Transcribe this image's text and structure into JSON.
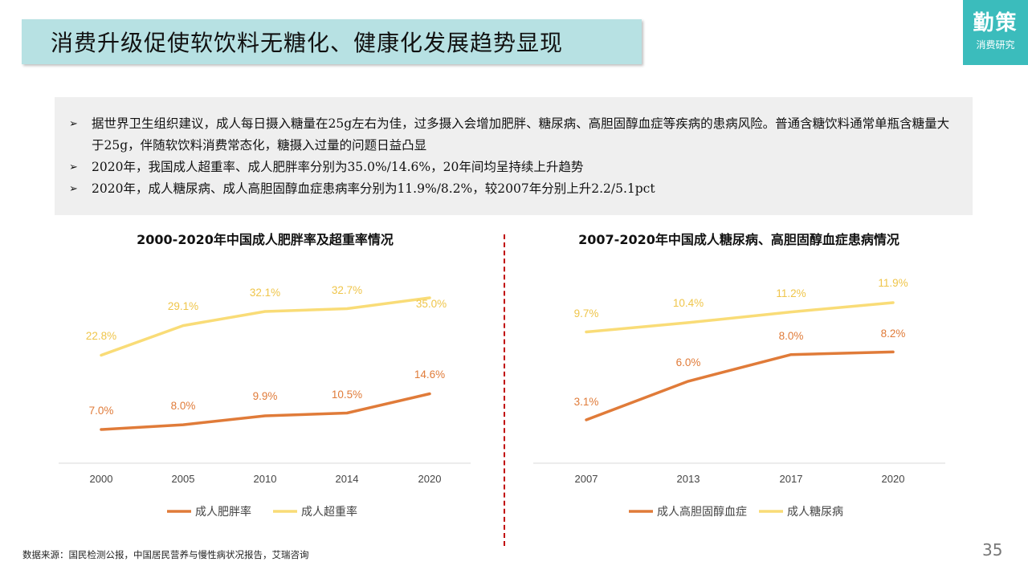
{
  "slide": {
    "title": "消费升级促使软饮料无糖化、健康化发展趋势显现",
    "brand": {
      "name": "勤策",
      "sub": "消费研究"
    },
    "bullets": [
      "据世界卫生组织建议，成人每日摄入糖量在25g左右为佳，过多摄入会增加肥胖、糖尿病、高胆固醇血症等疾病的患病风险。普通含糖饮料通常单瓶含糖量大于25g，伴随软饮料消费常态化，糖摄入过量的问题日益凸显",
      "2020年，我国成人超重率、成人肥胖率分别为35.0%/14.6%，20年间均呈持续上升趋势",
      "2020年，成人糖尿病、成人高胆固醇血症患病率分别为11.9%/8.2%，较2007年分别上升2.2/5.1pct"
    ],
    "bullet_marker": "➢",
    "source": "数据来源：国民检测公报，中国居民营养与慢性病状况报告，艾瑞咨询",
    "page_number": "35",
    "colors": {
      "accent": "#3bbcbc",
      "title_bg": "#b7e1e3",
      "orange": "#e07b39",
      "yellow": "#f9dc77",
      "divider": "#c00000"
    }
  },
  "chart_data": [
    {
      "type": "line",
      "title": "2000-2020年中国成人肥胖率及超重率情况",
      "categories": [
        "2000",
        "2005",
        "2010",
        "2014",
        "2020"
      ],
      "series": [
        {
          "name": "成人肥胖率",
          "color": "#e07b39",
          "values": [
            7.0,
            8.0,
            9.9,
            10.5,
            14.6
          ],
          "labels": [
            "7.0%",
            "8.0%",
            "9.9%",
            "10.5%",
            "14.6%"
          ]
        },
        {
          "name": "成人超重率",
          "color": "#f9dc77",
          "values": [
            22.8,
            29.1,
            32.1,
            32.7,
            35.0
          ],
          "labels": [
            "22.8%",
            "29.1%",
            "32.1%",
            "32.7%",
            "35.0%"
          ]
        }
      ],
      "ylim": [
        0,
        40
      ],
      "grid": false,
      "legend": "bottom"
    },
    {
      "type": "line",
      "title": "2007-2020年中国成人糖尿病、高胆固醇血症患病情况",
      "categories": [
        "2007",
        "2013",
        "2017",
        "2020"
      ],
      "series": [
        {
          "name": "成人高胆固醇血症",
          "color": "#e07b39",
          "values": [
            3.1,
            6.0,
            8.0,
            8.2
          ],
          "labels": [
            "3.1%",
            "6.0%",
            "8.0%",
            "8.2%"
          ]
        },
        {
          "name": "成人糖尿病",
          "color": "#f9dc77",
          "values": [
            9.7,
            10.4,
            11.2,
            11.9
          ],
          "labels": [
            "9.7%",
            "10.4%",
            "11.2%",
            "11.9%"
          ]
        }
      ],
      "ylim": [
        0,
        14
      ],
      "grid": false,
      "legend": "bottom"
    }
  ]
}
